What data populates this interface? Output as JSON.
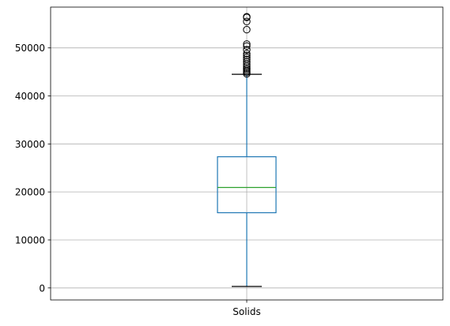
{
  "chart_data": {
    "type": "boxplot",
    "categories": [
      "Solids"
    ],
    "grid": true,
    "ylim": [
      -2500,
      58500
    ],
    "yticks": [
      0,
      10000,
      20000,
      30000,
      40000,
      50000
    ],
    "ytick_labels": [
      "0",
      "10000",
      "20000",
      "30000",
      "40000",
      "50000"
    ],
    "boxes": [
      {
        "label": "Solids",
        "whisker_low": 320,
        "q1": 15670,
        "median": 20930,
        "q3": 27330,
        "whisker_high": 44500,
        "outliers": [
          44600,
          44900,
          45200,
          45500,
          45800,
          46200,
          46600,
          47100,
          47600,
          48000,
          48400,
          48800,
          49600,
          50400,
          50800,
          53800,
          55500,
          56350,
          56500
        ]
      }
    ],
    "colors": {
      "box": "#1f77b4",
      "median": "#2ca02c",
      "whisker": "#1f77b4",
      "cap": "#000000",
      "outlier": "#000000",
      "grid": "#b0b0b0",
      "axes": "#000000"
    }
  }
}
